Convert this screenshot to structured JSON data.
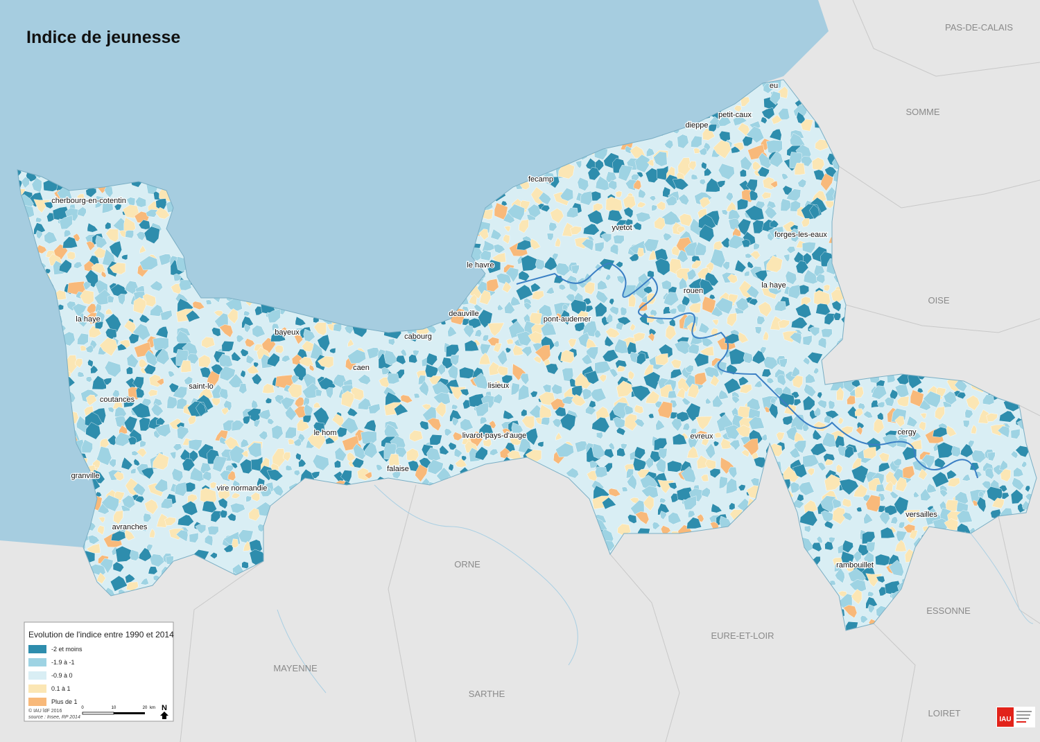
{
  "title": "Indice de jeunesse",
  "places": [
    "eu",
    "petit-caux",
    "dieppe",
    "fecamp",
    "yvetot",
    "forges-les-eaux",
    "le havre",
    "la haye",
    "rouen",
    "cherbourg-en-cotentin",
    "la haye",
    "deauville",
    "pont-audemer",
    "bayeux",
    "cabourg",
    "caen",
    "saint-lo",
    "lisieux",
    "coutances",
    "le hom",
    "livarot-pays-d'auge",
    "evreux",
    "cergy",
    "granville",
    "falaise",
    "vire normandie",
    "versailles",
    "avranches",
    "rambouillet"
  ],
  "departments": [
    "PAS-DE-CALAIS",
    "SOMME",
    "OISE",
    "ORNE",
    "ESSONNE",
    "EURE-ET-LOIR",
    "MAYENNE",
    "SARTHE",
    "LOIRET"
  ],
  "legend": {
    "title": "Evolution de l'indice entre 1990 et 2014",
    "items": [
      {
        "label": "-2 et moins",
        "color": "#2e8dad"
      },
      {
        "label": "-1.9 à -1",
        "color": "#9ed3e3"
      },
      {
        "label": "-0.9 à 0",
        "color": "#d9eef4"
      },
      {
        "label": "0.1 à 1",
        "color": "#fbe6b4"
      },
      {
        "label": "Plus de 1",
        "color": "#f8b97a"
      }
    ]
  },
  "scale": {
    "ticks": [
      "0",
      "10",
      "20"
    ],
    "unit": "km"
  },
  "north": "N",
  "credits": [
    "© IAU îdF 2016",
    "source : Insee, RP 2014"
  ],
  "logo": "IAU"
}
